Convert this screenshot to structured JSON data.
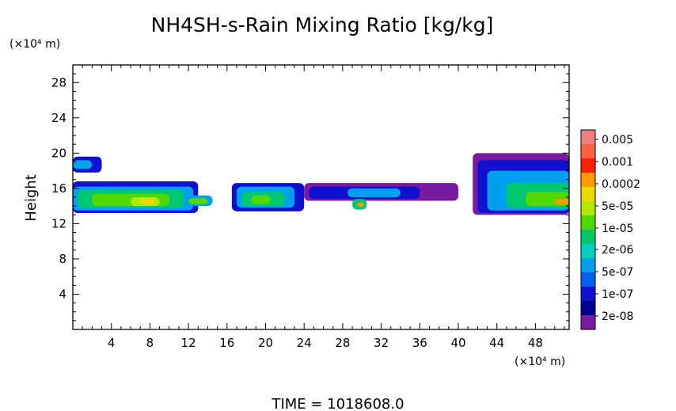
{
  "chart_data": {
    "type": "heatmap",
    "title": "NH4SH-s-Rain Mixing Ratio [kg/kg]",
    "ylabel": "Height",
    "y_unit": "(×10⁴ m)",
    "x_unit": "(×10⁴ m)",
    "xlim": [
      0,
      51.5
    ],
    "ylim": [
      0,
      30
    ],
    "x_ticks": [
      4,
      8,
      12,
      16,
      20,
      24,
      28,
      32,
      36,
      40,
      44,
      48
    ],
    "y_ticks": [
      4,
      8,
      12,
      16,
      20,
      24,
      28
    ],
    "colorbar": {
      "labels": [
        "0.005",
        "0.001",
        "0.0002",
        "5e-05",
        "1e-05",
        "2e-06",
        "5e-07",
        "1e-07",
        "2e-08"
      ],
      "colors": [
        "#f08080",
        "#ff6040",
        "#ff2000",
        "#ff9a00",
        "#f0d800",
        "#b4e800",
        "#50d800",
        "#00c870",
        "#00d0c0",
        "#00a0f0",
        "#0060f0",
        "#1010d0",
        "#000090",
        "#7a1aa0"
      ]
    },
    "levels": [
      {
        "name": "2e-08",
        "color": "#7a1aa0",
        "x0": 0,
        "x1": 51.5,
        "y0": 13.0,
        "y1": 17.2
      },
      {
        "name": "1e-07",
        "color": "#1010d0",
        "x0": 0,
        "x1": 51.5,
        "y0": 13.2,
        "y1": 16.8
      },
      {
        "name": "5e-07",
        "color": "#00a0f0",
        "x0": 0,
        "x1": 51.5,
        "y0": 13.5,
        "y1": 16.2
      },
      {
        "name": "2e-06",
        "color": "#00c870",
        "x0": 0,
        "x1": 51.5,
        "y0": 13.8,
        "y1": 15.6
      },
      {
        "name": "5e-05",
        "color": "#b4e800",
        "x0": 0,
        "x1": 51.5,
        "y0": 14.0,
        "y1": 15.0
      }
    ],
    "cells": [
      {
        "x0": 0,
        "x1": 3.0,
        "y0": 17.8,
        "y1": 19.6,
        "color": "#1010d0"
      },
      {
        "x0": 0,
        "x1": 2.0,
        "y0": 18.2,
        "y1": 19.2,
        "color": "#00a0f0"
      },
      {
        "x0": 0,
        "x1": 13.0,
        "y0": 13.2,
        "y1": 16.8,
        "color": "#1010d0"
      },
      {
        "x0": 0,
        "x1": 12.5,
        "y0": 13.5,
        "y1": 16.2,
        "color": "#00a0f0"
      },
      {
        "x0": 0.5,
        "x1": 11.5,
        "y0": 13.8,
        "y1": 15.8,
        "color": "#00c870"
      },
      {
        "x0": 2.0,
        "x1": 10.0,
        "y0": 14.0,
        "y1": 15.4,
        "color": "#50d800"
      },
      {
        "x0": 6.0,
        "x1": 9.0,
        "y0": 14.0,
        "y1": 15.0,
        "color": "#b4e800"
      },
      {
        "x0": 7.0,
        "x1": 8.5,
        "y0": 14.2,
        "y1": 14.8,
        "color": "#f0d800"
      },
      {
        "x0": 11.5,
        "x1": 14.5,
        "y0": 14.0,
        "y1": 15.2,
        "color": "#00a0f0"
      },
      {
        "x0": 12.0,
        "x1": 14.0,
        "y0": 14.2,
        "y1": 14.9,
        "color": "#50d800"
      },
      {
        "x0": 16.5,
        "x1": 24.0,
        "y0": 13.4,
        "y1": 16.6,
        "color": "#1010d0"
      },
      {
        "x0": 17.0,
        "x1": 23.0,
        "y0": 13.8,
        "y1": 16.2,
        "color": "#00a0f0"
      },
      {
        "x0": 17.5,
        "x1": 22.0,
        "y0": 14.0,
        "y1": 15.6,
        "color": "#00c870"
      },
      {
        "x0": 18.5,
        "x1": 20.5,
        "y0": 14.2,
        "y1": 15.2,
        "color": "#50d800"
      },
      {
        "x0": 24.0,
        "x1": 40.0,
        "y0": 14.6,
        "y1": 16.6,
        "color": "#7a1aa0"
      },
      {
        "x0": 24.5,
        "x1": 36.0,
        "y0": 14.8,
        "y1": 16.2,
        "color": "#1010d0"
      },
      {
        "x0": 28.5,
        "x1": 34.0,
        "y0": 15.0,
        "y1": 16.0,
        "color": "#00a0f0"
      },
      {
        "x0": 29.0,
        "x1": 30.5,
        "y0": 13.6,
        "y1": 14.8,
        "color": "#00c870"
      },
      {
        "x0": 29.5,
        "x1": 30.2,
        "y0": 13.9,
        "y1": 14.4,
        "color": "#ff9a00"
      },
      {
        "x0": 41.5,
        "x1": 51.5,
        "y0": 13.0,
        "y1": 20.0,
        "color": "#7a1aa0"
      },
      {
        "x0": 42.0,
        "x1": 51.5,
        "y0": 13.2,
        "y1": 19.2,
        "color": "#1010d0"
      },
      {
        "x0": 43.0,
        "x1": 51.5,
        "y0": 13.5,
        "y1": 18.0,
        "color": "#00a0f0"
      },
      {
        "x0": 45.0,
        "x1": 51.5,
        "y0": 13.8,
        "y1": 16.6,
        "color": "#00c870"
      },
      {
        "x0": 47.0,
        "x1": 51.5,
        "y0": 14.0,
        "y1": 15.6,
        "color": "#50d800"
      },
      {
        "x0": 50.0,
        "x1": 51.5,
        "y0": 14.2,
        "y1": 14.8,
        "color": "#ff9a00"
      }
    ],
    "footer": "TIME =  1018608.0"
  }
}
